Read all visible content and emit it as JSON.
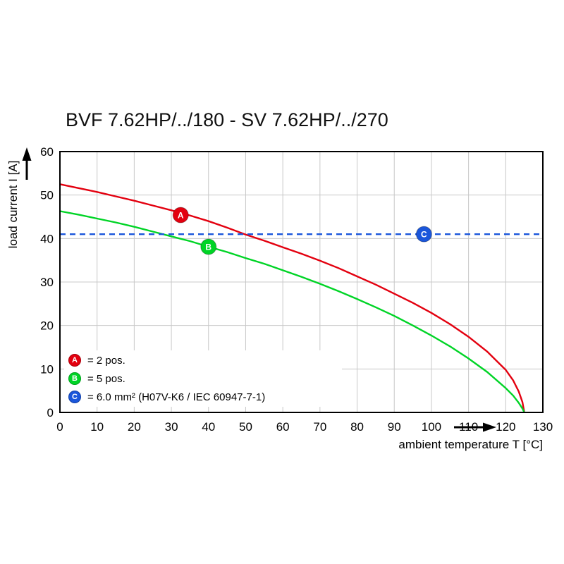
{
  "title": "BVF 7.62HP/../180 - SV 7.62HP/../270",
  "chart_data": {
    "type": "line",
    "title": "BVF 7.62HP/../180 - SV 7.62HP/../270",
    "xlabel": "ambient temperature T [°C]",
    "ylabel": "load current I [A]",
    "xlim": [
      0,
      130
    ],
    "ylim": [
      0,
      60
    ],
    "xticks": [
      0,
      10,
      20,
      30,
      40,
      50,
      60,
      70,
      80,
      90,
      100,
      110,
      120,
      130
    ],
    "yticks": [
      0,
      10,
      20,
      30,
      40,
      50,
      60
    ],
    "grid": true,
    "grid_color": "#c8c8c8",
    "axis_color": "#000000",
    "legend_position": "bottom-left inside plot",
    "series": [
      {
        "marker_letter": "A",
        "name": "2 pos.",
        "color": "#e3000f",
        "style": "solid",
        "points": [
          [
            0,
            52.5
          ],
          [
            5,
            51.6
          ],
          [
            10,
            50.7
          ],
          [
            15,
            49.7
          ],
          [
            20,
            48.7
          ],
          [
            25,
            47.6
          ],
          [
            30,
            46.5
          ],
          [
            35,
            45.3
          ],
          [
            40,
            44.0
          ],
          [
            45,
            42.5
          ],
          [
            50,
            40.9
          ],
          [
            55,
            39.5
          ],
          [
            60,
            38.0
          ],
          [
            65,
            36.5
          ],
          [
            70,
            34.9
          ],
          [
            75,
            33.2
          ],
          [
            80,
            31.3
          ],
          [
            85,
            29.4
          ],
          [
            90,
            27.3
          ],
          [
            95,
            25.2
          ],
          [
            100,
            22.9
          ],
          [
            105,
            20.3
          ],
          [
            110,
            17.4
          ],
          [
            115,
            14.0
          ],
          [
            120,
            9.8
          ],
          [
            122,
            7.4
          ],
          [
            123.5,
            4.8
          ],
          [
            124.5,
            2.4
          ],
          [
            125,
            0
          ]
        ]
      },
      {
        "marker_letter": "B",
        "name": "5 pos.",
        "color": "#00d426",
        "style": "solid",
        "points": [
          [
            0,
            46.3
          ],
          [
            5,
            45.5
          ],
          [
            10,
            44.6
          ],
          [
            15,
            43.7
          ],
          [
            20,
            42.7
          ],
          [
            25,
            41.6
          ],
          [
            30,
            40.5
          ],
          [
            35,
            39.4
          ],
          [
            40,
            38.1
          ],
          [
            45,
            36.9
          ],
          [
            50,
            35.5
          ],
          [
            55,
            34.2
          ],
          [
            60,
            32.7
          ],
          [
            65,
            31.2
          ],
          [
            70,
            29.6
          ],
          [
            75,
            27.9
          ],
          [
            80,
            26.1
          ],
          [
            85,
            24.2
          ],
          [
            90,
            22.2
          ],
          [
            95,
            20.0
          ],
          [
            100,
            17.7
          ],
          [
            105,
            15.2
          ],
          [
            110,
            12.4
          ],
          [
            115,
            9.3
          ],
          [
            120,
            5.6
          ],
          [
            122,
            3.9
          ],
          [
            123.5,
            2.2
          ],
          [
            124.5,
            0.9
          ],
          [
            125,
            0
          ]
        ]
      },
      {
        "marker_letter": "C",
        "name": "6.0 mm² (H07V-K6 / IEC 60947-7-1)",
        "color": "#1a56db",
        "style": "dashed",
        "points": [
          [
            0,
            41
          ],
          [
            130,
            41
          ]
        ]
      }
    ],
    "markers": [
      {
        "letter": "A",
        "x": 32.5,
        "y": 45.4,
        "color": "#e3000f"
      },
      {
        "letter": "B",
        "x": 40,
        "y": 38.1,
        "color": "#00d426"
      },
      {
        "letter": "C",
        "x": 98,
        "y": 41,
        "color": "#1a56db"
      }
    ],
    "legend": [
      {
        "letter": "A",
        "label": "= 2 pos.",
        "color": "#e3000f"
      },
      {
        "letter": "B",
        "label": "= 5 pos.",
        "color": "#00d426"
      },
      {
        "letter": "C",
        "label": "= 6.0 mm² (H07V-K6 / IEC 60947-7-1)",
        "color": "#1a56db"
      }
    ]
  }
}
